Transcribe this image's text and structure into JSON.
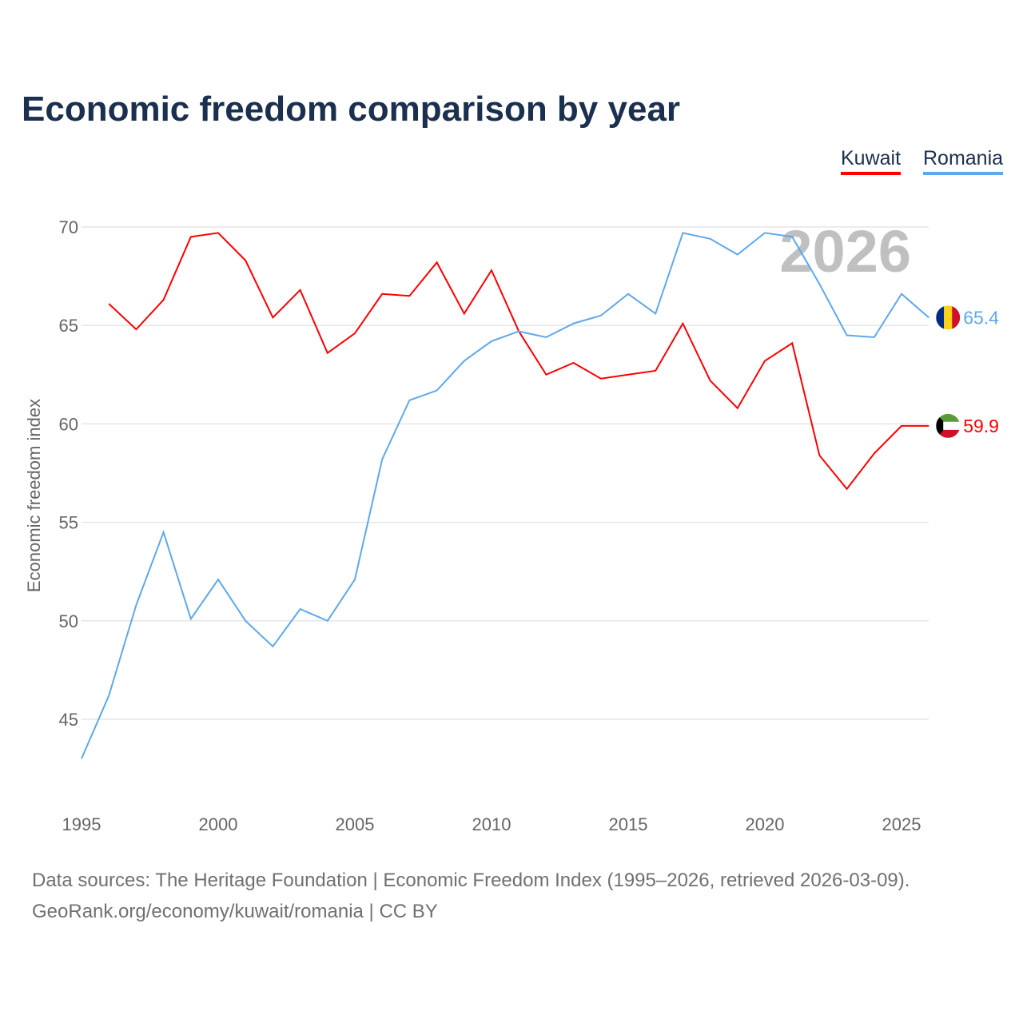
{
  "title": "Economic freedom comparison by year",
  "year_watermark": "2026",
  "sources": {
    "line1": "Data sources: The Heritage Foundation | Economic Freedom Index (1995–2026, retrieved 2026-03-09).",
    "line2": "GeoRank.org/economy/kuwait/romania | CC BY"
  },
  "chart_data": {
    "type": "line",
    "title": "Economic freedom comparison by year",
    "xlabel": "",
    "ylabel": "Economic freedom index",
    "xlim": [
      1995,
      2026
    ],
    "ylim": [
      42.5,
      71
    ],
    "x_ticks": [
      "1995",
      "2000",
      "2005",
      "2010",
      "2015",
      "2020",
      "2025"
    ],
    "y_ticks": [
      "45",
      "50",
      "55",
      "60",
      "65",
      "70"
    ],
    "grid": true,
    "legend_placement": "top-right",
    "series": [
      {
        "name": "Kuwait",
        "color": "#ff0000",
        "end_label": "59.9",
        "flag": "kuwait-flag",
        "x": [
          1996,
          1997,
          1998,
          1999,
          2000,
          2001,
          2002,
          2003,
          2004,
          2005,
          2006,
          2007,
          2008,
          2009,
          2010,
          2011,
          2012,
          2013,
          2014,
          2015,
          2016,
          2017,
          2018,
          2019,
          2020,
          2021,
          2022,
          2023,
          2024,
          2025,
          2026
        ],
        "values": [
          66.1,
          64.8,
          66.3,
          69.5,
          69.7,
          68.3,
          65.4,
          66.8,
          63.6,
          64.6,
          66.6,
          66.5,
          68.2,
          65.6,
          67.8,
          64.7,
          62.5,
          63.1,
          62.3,
          62.5,
          62.7,
          65.1,
          62.2,
          60.8,
          63.2,
          64.1,
          58.4,
          56.7,
          58.5,
          59.9,
          59.9
        ]
      },
      {
        "name": "Romania",
        "color": "#5ea8ec",
        "end_label": "65.4",
        "flag": "romania-flag",
        "x": [
          1995,
          1996,
          1997,
          1998,
          1999,
          2000,
          2001,
          2002,
          2003,
          2004,
          2005,
          2006,
          2007,
          2008,
          2009,
          2010,
          2011,
          2012,
          2013,
          2014,
          2015,
          2016,
          2017,
          2018,
          2019,
          2020,
          2021,
          2022,
          2023,
          2024,
          2025,
          2026
        ],
        "values": [
          43.0,
          46.2,
          50.8,
          54.5,
          50.1,
          52.1,
          50.0,
          48.7,
          50.6,
          50.0,
          52.1,
          58.2,
          61.2,
          61.7,
          63.2,
          64.2,
          64.7,
          64.4,
          65.1,
          65.5,
          66.6,
          65.6,
          69.7,
          69.4,
          68.6,
          69.7,
          69.5,
          67.1,
          64.5,
          64.4,
          66.6,
          65.4
        ]
      }
    ]
  }
}
